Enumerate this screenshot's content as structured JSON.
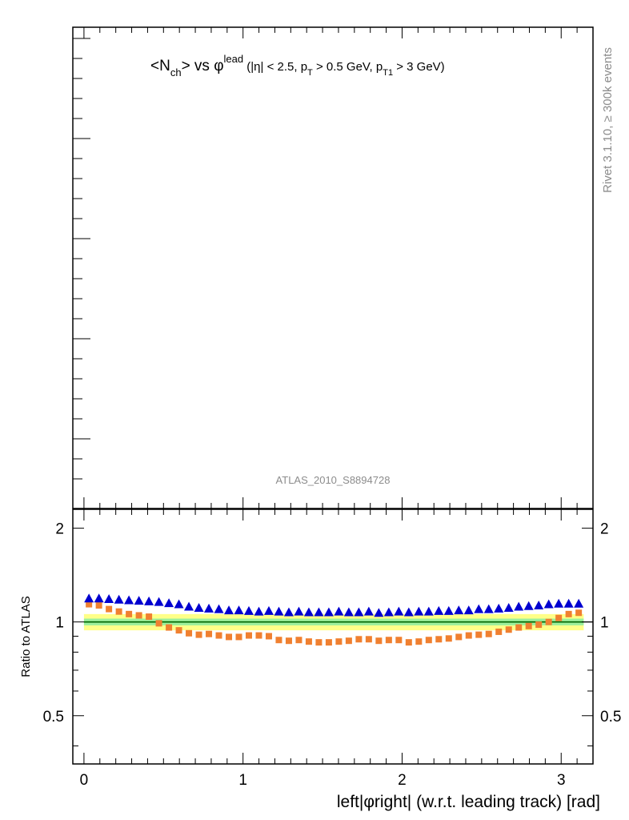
{
  "colors": {
    "band_outer": "#ffff88",
    "band_inner": "#9cf09c",
    "ref_line": "#006400",
    "series_triangle": "#0000d0",
    "series_square": "#f08030",
    "watermark": "#8c8c8c"
  },
  "title": {
    "main_left": "<N",
    "main_sub": "ch",
    "main_mid": "> vs ",
    "phi": "φ",
    "lead_sup": "lead",
    "paren_open": " (|η| < 2.5, p",
    "pt_sub": "T",
    "mid_text": " > 0.5 GeV, p",
    "pt1_sub": "T1",
    "paren_close": " > 3 GeV)"
  },
  "watermark_label": "ATLAS_2010_S8894728",
  "side_label": "Rivet 3.1.10, ≥ 300k events",
  "chart_data": [
    {
      "type": "scatter",
      "title": "<N_ch> vs φ^lead (|η| < 2.5, p_T > 0.5 GeV, p_T1 > 3 GeV)",
      "series": []
    },
    {
      "type": "scatter",
      "xlabel": "left|φright| (w.r.t. leading track) [rad]",
      "ylabel": "Ratio to ATLAS",
      "xlim": [
        -0.07,
        3.2
      ],
      "ylim": [
        0.35,
        2.3
      ],
      "x_ticks": [
        "0",
        "1",
        "2",
        "3"
      ],
      "y_ticks_left": [
        "0.5",
        "1",
        "2"
      ],
      "y_ticks_right": [
        "0.5",
        "1",
        "2"
      ],
      "reference": 1.0,
      "band_inner": [
        0.975,
        1.025
      ],
      "band_outer": [
        0.94,
        1.06
      ],
      "x": [
        0.0314,
        0.0942,
        0.157,
        0.2199,
        0.2827,
        0.3456,
        0.4084,
        0.4712,
        0.5341,
        0.5969,
        0.6597,
        0.7226,
        0.7854,
        0.8482,
        0.9111,
        0.9739,
        1.0367,
        1.0996,
        1.1624,
        1.2252,
        1.2881,
        1.3509,
        1.4137,
        1.4765,
        1.5394,
        1.6022,
        1.665,
        1.7279,
        1.7907,
        1.8535,
        1.9164,
        1.9792,
        2.042,
        2.1049,
        2.1677,
        2.2305,
        2.2934,
        2.3562,
        2.419,
        2.4819,
        2.5447,
        2.6075,
        2.6704,
        2.7332,
        2.796,
        2.8588,
        2.9217,
        2.9845,
        3.0473,
        3.1102
      ],
      "series_values": [
        [
          1.19,
          1.19,
          1.185,
          1.18,
          1.175,
          1.17,
          1.165,
          1.16,
          1.15,
          1.14,
          1.12,
          1.11,
          1.105,
          1.1,
          1.09,
          1.09,
          1.085,
          1.08,
          1.085,
          1.08,
          1.075,
          1.08,
          1.075,
          1.075,
          1.075,
          1.08,
          1.075,
          1.075,
          1.08,
          1.07,
          1.075,
          1.08,
          1.075,
          1.08,
          1.08,
          1.085,
          1.085,
          1.09,
          1.09,
          1.1,
          1.1,
          1.105,
          1.11,
          1.12,
          1.125,
          1.13,
          1.14,
          1.145,
          1.145,
          1.145
        ],
        [
          1.14,
          1.13,
          1.1,
          1.08,
          1.06,
          1.05,
          1.04,
          0.99,
          0.96,
          0.94,
          0.92,
          0.91,
          0.915,
          0.905,
          0.895,
          0.895,
          0.905,
          0.905,
          0.9,
          0.875,
          0.87,
          0.875,
          0.865,
          0.86,
          0.86,
          0.865,
          0.87,
          0.88,
          0.88,
          0.87,
          0.875,
          0.875,
          0.86,
          0.865,
          0.875,
          0.88,
          0.885,
          0.895,
          0.905,
          0.91,
          0.915,
          0.93,
          0.945,
          0.96,
          0.97,
          0.98,
          1.0,
          1.03,
          1.06,
          1.07
        ]
      ]
    }
  ],
  "axes": {
    "xlabel": "left|φright| (w.r.t. leading track) [rad]",
    "ylabel": "Ratio to ATLAS",
    "x_ticks": [
      "0",
      "1",
      "2",
      "3"
    ],
    "y_ticks": [
      "0.5",
      "1",
      "2"
    ]
  }
}
